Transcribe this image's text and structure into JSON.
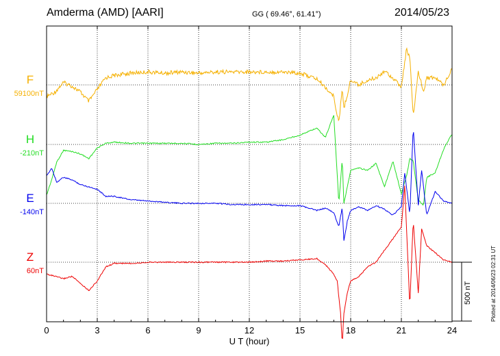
{
  "header": {
    "station": "Amderma (AMD)  [AARI]",
    "coords": "GG ( 69.46°,  61.41°)",
    "date": "2014/05/23"
  },
  "footer": {
    "scale_label": "500 nT",
    "plotted_label": "Plotted at 2014/06/23 02:31  UT"
  },
  "chart_data": {
    "type": "line",
    "title": "Amderma (AMD)  [AARI]",
    "xlabel": "U T (hour)",
    "ylabel": "",
    "xlim": [
      0,
      24
    ],
    "x_ticks": [
      0,
      3,
      6,
      9,
      12,
      15,
      18,
      21,
      24
    ],
    "grid": true,
    "scale_nT": 500,
    "series": [
      {
        "name": "F",
        "baseline_label": "59100nT",
        "baseline_value": 59100,
        "unit": "nT",
        "color": "#f5b000",
        "x": [
          0,
          0.5,
          1,
          1.5,
          2,
          2.5,
          3,
          3.5,
          4,
          5,
          6,
          7,
          8,
          9,
          10,
          11,
          12,
          13,
          14,
          15,
          16,
          16.5,
          17,
          17.3,
          17.5,
          17.6,
          17.8,
          18,
          18.5,
          19,
          19.5,
          20,
          20.5,
          21,
          21.3,
          21.5,
          21.7,
          22,
          22.3,
          22.5,
          23,
          23.5,
          24
        ],
        "values": [
          -100,
          -60,
          20,
          -10,
          -60,
          -140,
          -40,
          60,
          80,
          100,
          110,
          100,
          110,
          100,
          110,
          110,
          110,
          110,
          110,
          100,
          50,
          -20,
          -100,
          -330,
          -20,
          -200,
          -80,
          40,
          0,
          40,
          60,
          120,
          60,
          -20,
          300,
          240,
          -280,
          120,
          -60,
          60,
          60,
          0,
          140
        ]
      },
      {
        "name": "H",
        "baseline_label": "-210nT",
        "baseline_value": -210,
        "unit": "nT",
        "color": "#22dd22",
        "x": [
          0,
          0.3,
          0.6,
          1,
          1.5,
          2,
          2.5,
          3,
          3.5,
          4,
          5,
          6,
          7,
          8,
          9,
          10,
          11,
          12,
          13,
          14,
          15,
          16,
          16.5,
          17,
          17.3,
          17.5,
          17.6,
          18,
          18.5,
          19,
          19.5,
          20,
          20.5,
          21,
          21.3,
          21.5,
          21.7,
          22,
          22.3,
          22.5,
          23,
          23.5,
          24
        ],
        "values": [
          -430,
          -300,
          -150,
          -50,
          -60,
          -80,
          -120,
          -30,
          10,
          20,
          10,
          10,
          10,
          10,
          0,
          10,
          10,
          20,
          20,
          40,
          80,
          140,
          60,
          250,
          -500,
          -120,
          -500,
          -220,
          -200,
          -220,
          -160,
          -360,
          -140,
          -420,
          -270,
          -120,
          -140,
          -470,
          -520,
          -280,
          -240,
          -40,
          90
        ]
      },
      {
        "name": "E",
        "baseline_label": "-140nT",
        "baseline_value": -140,
        "unit": "nT",
        "color": "#0000ee",
        "x": [
          0,
          0.3,
          0.6,
          1,
          1.5,
          2,
          2.5,
          3,
          3.5,
          4,
          5,
          6,
          7,
          8,
          9,
          10,
          11,
          12,
          13,
          14,
          15,
          16,
          16.5,
          17,
          17.3,
          17.5,
          17.6,
          17.8,
          18,
          18.5,
          19,
          19.5,
          20,
          20.5,
          21,
          21.2,
          21.5,
          21.7,
          22,
          22.2,
          22.5,
          23,
          23.5,
          24
        ],
        "values": [
          230,
          300,
          180,
          220,
          200,
          160,
          140,
          120,
          60,
          60,
          30,
          20,
          10,
          0,
          0,
          0,
          -10,
          -10,
          -10,
          -20,
          -20,
          -60,
          -40,
          -80,
          -200,
          -30,
          -320,
          -150,
          -60,
          -30,
          -60,
          -20,
          -50,
          -100,
          -30,
          260,
          -100,
          650,
          -20,
          280,
          -100,
          100,
          20,
          0
        ]
      },
      {
        "name": "Z",
        "baseline_label": "60nT",
        "baseline_value": 60,
        "unit": "nT",
        "color": "#ee0000",
        "x": [
          0,
          0.5,
          1,
          1.5,
          2,
          2.5,
          3,
          3.5,
          4,
          5,
          6,
          7,
          8,
          9,
          10,
          11,
          12,
          13,
          14,
          15,
          16,
          16.5,
          17,
          17.2,
          17.4,
          17.5,
          17.6,
          17.8,
          18,
          18.5,
          19,
          19.5,
          20,
          20.5,
          21,
          21.2,
          21.5,
          21.7,
          22,
          22.2,
          22.5,
          23,
          23.5,
          24
        ],
        "values": [
          -100,
          -120,
          -140,
          -120,
          -180,
          -240,
          -160,
          -40,
          -10,
          -10,
          0,
          0,
          0,
          0,
          0,
          0,
          0,
          10,
          10,
          20,
          30,
          -20,
          -100,
          -160,
          -430,
          -700,
          -430,
          -260,
          -160,
          -120,
          -40,
          0,
          100,
          200,
          300,
          650,
          -380,
          360,
          -260,
          280,
          140,
          80,
          20,
          0
        ]
      }
    ]
  }
}
